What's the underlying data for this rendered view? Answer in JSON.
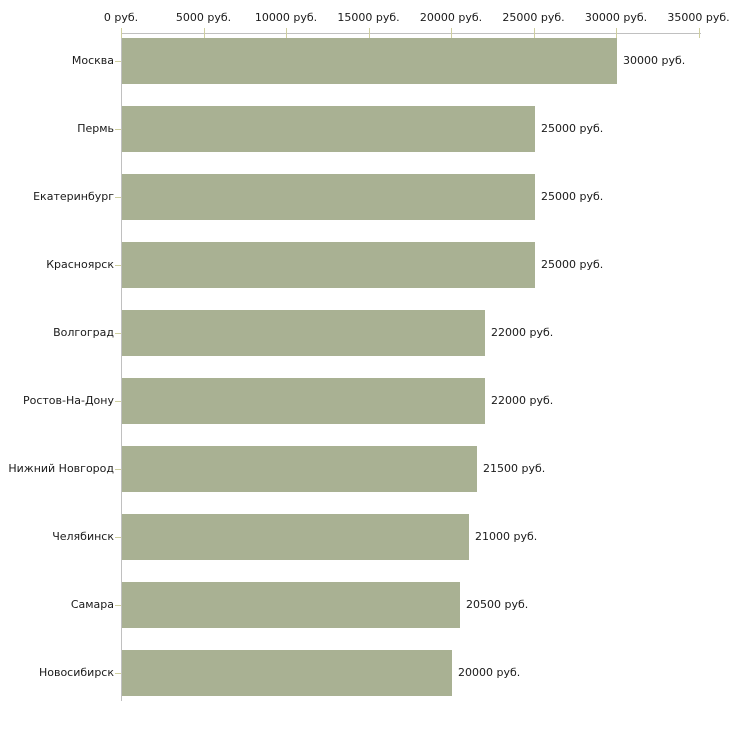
{
  "chart_data": {
    "type": "bar",
    "orientation": "horizontal",
    "title": "",
    "unit": "руб.",
    "categories": [
      "Москва",
      "Пермь",
      "Екатеринбург",
      "Красноярск",
      "Волгоград",
      "Ростов-На-Дону",
      "Нижний Новгород",
      "Челябинск",
      "Самара",
      "Новосибирск"
    ],
    "values": [
      30000,
      25000,
      25000,
      25000,
      22000,
      22000,
      21500,
      21000,
      20500,
      20000
    ],
    "value_labels": [
      "30000 руб.",
      "25000 руб.",
      "25000 руб.",
      "25000 руб.",
      "22000 руб.",
      "22000 руб.",
      "21500 руб.",
      "21000 руб.",
      "20500 руб.",
      "20000 руб."
    ],
    "x_axis": {
      "position": "top",
      "range": [
        0,
        35000
      ],
      "ticks": [
        0,
        5000,
        10000,
        15000,
        20000,
        25000,
        30000,
        35000
      ],
      "tick_labels": [
        "0 руб.",
        "5000 руб.",
        "10000 руб.",
        "15000 руб.",
        "20000 руб.",
        "25000 руб.",
        "30000 руб.",
        "35000 руб."
      ]
    },
    "grid": false,
    "legend": false,
    "colors": {
      "bar": "#a9b193",
      "axis_line": "#c0c0c0",
      "tick_mark": "#cfcf9f",
      "text": "#1a1a1a",
      "background": "#ffffff"
    }
  }
}
